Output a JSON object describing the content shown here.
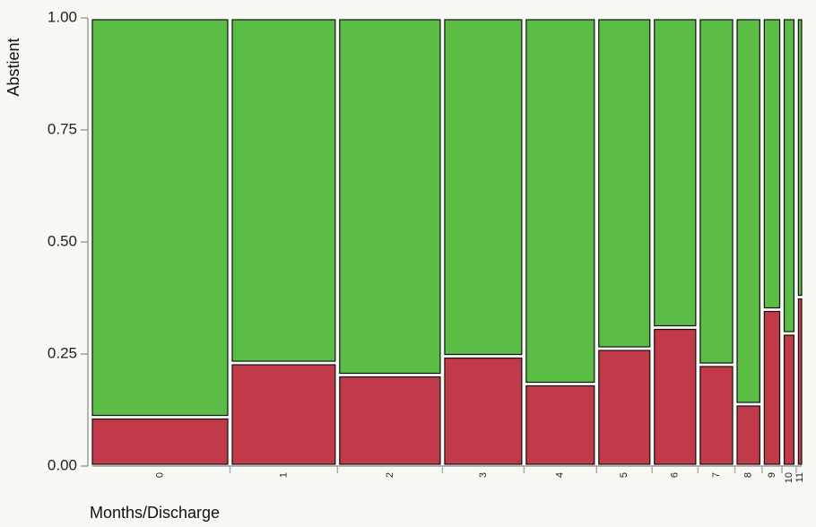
{
  "chart_data": {
    "type": "mosaic",
    "ylabel": "Abstient",
    "xlabel": "Months/Discharge",
    "ylim": [
      0,
      1
    ],
    "y_ticks": [
      "0.00",
      "0.25",
      "0.50",
      "0.75",
      "1.00"
    ],
    "categories": [
      "0",
      "1",
      "2",
      "3",
      "4",
      "5",
      "6",
      "7",
      "8",
      "9",
      "10",
      "11"
    ],
    "widths": [
      0.167,
      0.127,
      0.124,
      0.095,
      0.084,
      0.063,
      0.051,
      0.04,
      0.028,
      0.019,
      0.012,
      0.004
    ],
    "series": [
      {
        "values": [
          0.105,
          0.226,
          0.199,
          0.241,
          0.179,
          0.258,
          0.305,
          0.222,
          0.134,
          0.345,
          0.292,
          0.373
        ],
        "color": "#c03a4a"
      },
      {
        "values": [
          0.895,
          0.774,
          0.801,
          0.759,
          0.821,
          0.742,
          0.695,
          0.778,
          0.866,
          0.655,
          0.708,
          0.627
        ],
        "color": "#5bbd46"
      }
    ]
  }
}
